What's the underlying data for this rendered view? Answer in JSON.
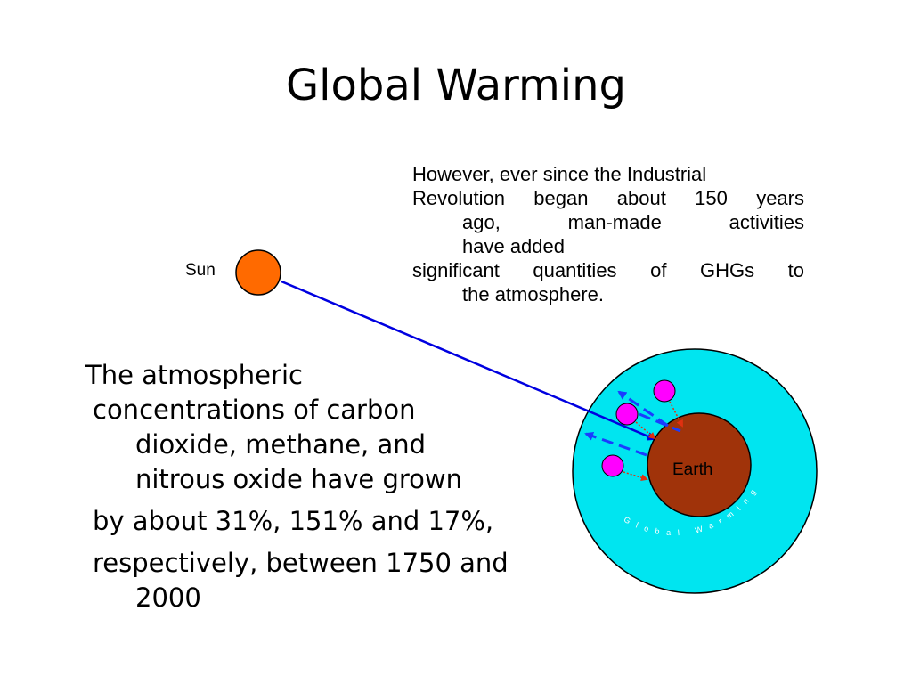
{
  "slide": {
    "title": "Global Warming"
  },
  "right_paragraph": {
    "line1": "However, ever since the Industrial",
    "line2": "Revolution began about 150 years",
    "line3": "ago,    man-made    activities",
    "line4": "have added",
    "line5": "significant quantities of GHGs to",
    "line6": "the  atmosphere."
  },
  "left_paragraph": {
    "line1": "The atmospheric",
    "line2": "concentrations of carbon",
    "line3": "dioxide, methane, and",
    "line4": "nitrous oxide have grown",
    "line5": "by about 31%, 151% and 17%,",
    "line6": "respectively, between 1750 and",
    "line7": "2000"
  },
  "diagram": {
    "sun_label": "Sun",
    "earth_label": "Earth",
    "atmosphere_label": "Global Warming",
    "colors": {
      "sun": "#ff6a00",
      "earth": "#a0330a",
      "atmosphere": "#00e5f0",
      "sunlight_ray": "#0000e0",
      "reflected_ray": "#1a3cff",
      "ghg_molecule": "#ff00ff",
      "emission_arrow": "#e03010"
    }
  }
}
